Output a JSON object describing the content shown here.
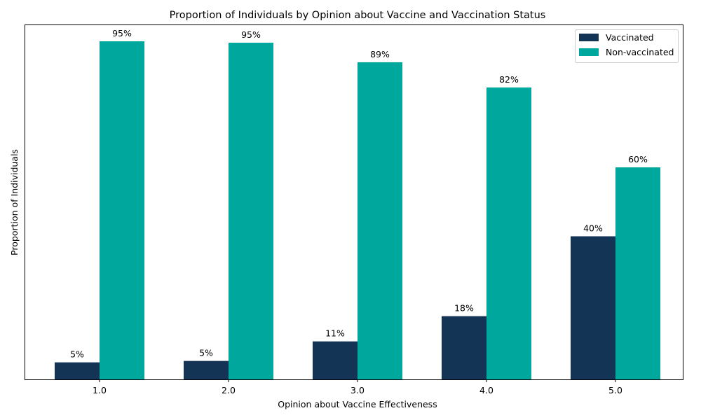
{
  "chart_data": {
    "type": "bar",
    "title": "Proportion of Individuals by Opinion about Vaccine and Vaccination Status",
    "xlabel": "Opinion about Vaccine Effectiveness",
    "ylabel": "Proportion of Individuals",
    "categories": [
      "1.0",
      "2.0",
      "3.0",
      "4.0",
      "5.0"
    ],
    "ylim": [
      0,
      1.0
    ],
    "grid": false,
    "legend_position": "top-right",
    "series": [
      {
        "name": "Vaccinated",
        "color": "#133454",
        "values": [
          0.048,
          0.052,
          0.107,
          0.178,
          0.403
        ],
        "labels": [
          "5%",
          "5%",
          "11%",
          "18%",
          "40%"
        ]
      },
      {
        "name": "Non-vaccinated",
        "color": "#00a79d",
        "values": [
          0.952,
          0.948,
          0.893,
          0.822,
          0.597
        ],
        "labels": [
          "95%",
          "95%",
          "89%",
          "82%",
          "60%"
        ]
      }
    ]
  }
}
